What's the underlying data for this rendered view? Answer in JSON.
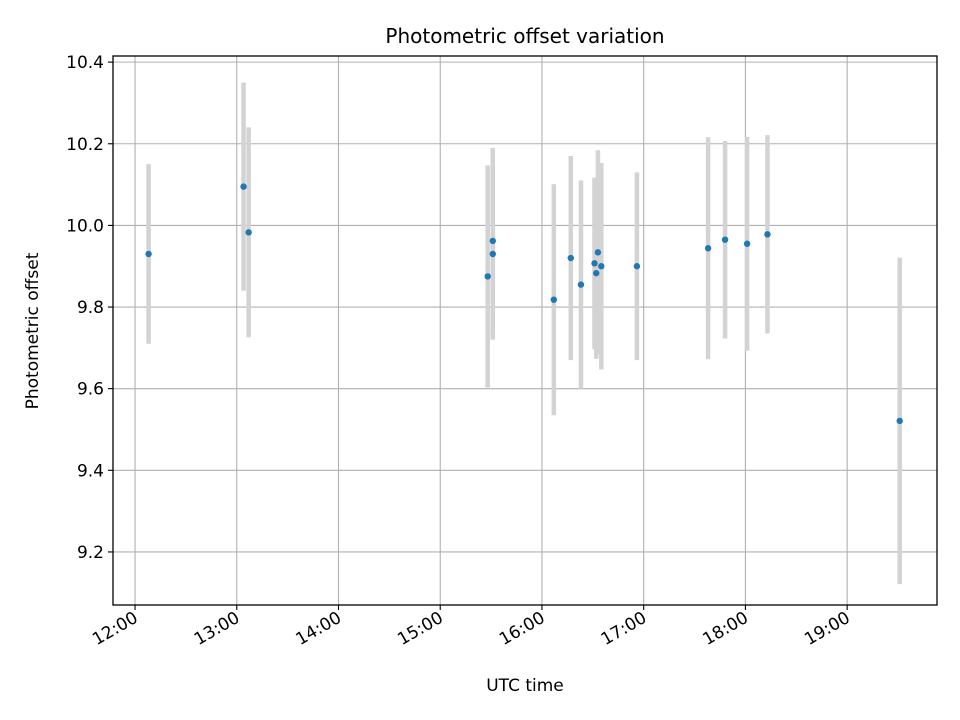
{
  "chart_data": {
    "type": "scatter",
    "title": "Photometric offset variation",
    "xlabel": "UTC time",
    "ylabel": "Photometric offset",
    "xlim": [
      "11:47",
      "19:53"
    ],
    "ylim": [
      9.07,
      10.415
    ],
    "x_ticks": [
      "12:00",
      "13:00",
      "14:00",
      "15:00",
      "16:00",
      "17:00",
      "18:00",
      "19:00"
    ],
    "y_ticks": [
      9.2,
      9.4,
      9.6,
      9.8,
      10.0,
      10.2,
      10.4
    ],
    "y_tick_labels": [
      "9.2",
      "9.4",
      "9.6",
      "9.8",
      "10.0",
      "10.2",
      "10.4"
    ],
    "grid": true,
    "marker_color": "#1f77b4",
    "errorbar_color": "#d3d3d3",
    "series": [
      {
        "points": [
          {
            "x": "12:08",
            "y": 9.93,
            "yerr": 0.22
          },
          {
            "x": "13:04",
            "y": 10.095,
            "yerr": 0.255
          },
          {
            "x": "13:07",
            "y": 9.983,
            "yerr": 0.257
          },
          {
            "x": "15:28",
            "y": 9.875,
            "yerr": 0.272
          },
          {
            "x": "15:31",
            "y": 9.962,
            "yerr": 0.228
          },
          {
            "x": "15:31",
            "y": 9.93,
            "yerr": 0.21
          },
          {
            "x": "16:07",
            "y": 9.818,
            "yerr": 0.283
          },
          {
            "x": "16:17",
            "y": 9.92,
            "yerr": 0.25
          },
          {
            "x": "16:23",
            "y": 9.855,
            "yerr": 0.255
          },
          {
            "x": "16:31",
            "y": 9.907,
            "yerr": 0.21
          },
          {
            "x": "16:32",
            "y": 9.883,
            "yerr": 0.21
          },
          {
            "x": "16:33",
            "y": 9.934,
            "yerr": 0.25
          },
          {
            "x": "16:35",
            "y": 9.9,
            "yerr": 0.253
          },
          {
            "x": "16:56",
            "y": 9.9,
            "yerr": 0.23
          },
          {
            "x": "17:38",
            "y": 9.944,
            "yerr": 0.272
          },
          {
            "x": "17:48",
            "y": 9.965,
            "yerr": 0.242
          },
          {
            "x": "18:01",
            "y": 9.955,
            "yerr": 0.262
          },
          {
            "x": "18:13",
            "y": 9.978,
            "yerr": 0.243
          },
          {
            "x": "19:31",
            "y": 9.521,
            "yerr": 0.4
          }
        ]
      }
    ]
  }
}
